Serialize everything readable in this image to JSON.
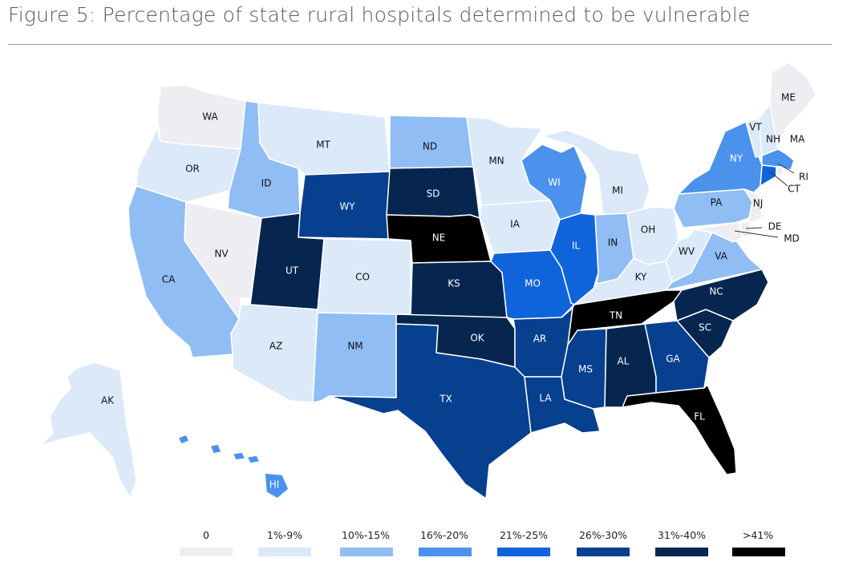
{
  "title": "Figure 5: Percentage of state rural hospitals determined to be vulnerable",
  "colors": {
    "0": "#eeeef2",
    "1": "#dbe9f8",
    "2": "#90bdf4",
    "3": "#4a92ec",
    "4": "#0f64dc",
    "5": "#06408f",
    "6": "#06264f",
    "7": "#000000"
  },
  "legend": [
    {
      "label": "0",
      "bin": 0
    },
    {
      "label": "1%-9%",
      "bin": 1
    },
    {
      "label": "10%-15%",
      "bin": 2
    },
    {
      "label": "16%-20%",
      "bin": 3
    },
    {
      "label": "21%-25%",
      "bin": 4
    },
    {
      "label": "26%-30%",
      "bin": 5
    },
    {
      "label": "31%-40%",
      "bin": 6
    },
    {
      "label": ">41%",
      "bin": 7
    }
  ],
  "states": {
    "WA": 0,
    "OR": 1,
    "CA": 2,
    "NV": 0,
    "ID": 2,
    "MT": 1,
    "WY": 5,
    "UT": 6,
    "AZ": 1,
    "CO": 1,
    "NM": 2,
    "ND": 2,
    "SD": 6,
    "NE": 7,
    "KS": 6,
    "OK": 6,
    "TX": 5,
    "MN": 1,
    "IA": 1,
    "MO": 4,
    "AR": 5,
    "LA": 5,
    "WI": 3,
    "IL": 4,
    "MI": 1,
    "IN": 2,
    "OH": 1,
    "KY": 1,
    "TN": 7,
    "MS": 5,
    "AL": 6,
    "GA": 5,
    "FL": 7,
    "SC": 6,
    "NC": 6,
    "VA": 2,
    "WV": 1,
    "PA": 2,
    "NY": 3,
    "VT": 1,
    "NH": 1,
    "ME": 0,
    "MA": 3,
    "RI": 0,
    "CT": 4,
    "NJ": 0,
    "DE": 0,
    "MD": 0,
    "AK": 1,
    "HI": 3
  },
  "labels": {
    "WA": "WA",
    "OR": "OR",
    "CA": "CA",
    "NV": "NV",
    "ID": "ID",
    "MT": "MT",
    "WY": "WY",
    "UT": "UT",
    "AZ": "AZ",
    "CO": "CO",
    "NM": "NM",
    "ND": "ND",
    "SD": "SD",
    "NE": "NE",
    "KS": "KS",
    "OK": "OK",
    "TX": "TX",
    "MN": "MN",
    "IA": "IA",
    "MO": "MO",
    "AR": "AR",
    "LA": "LA",
    "WI": "WI",
    "IL": "IL",
    "MI": "MI",
    "IN": "IN",
    "OH": "OH",
    "KY": "KY",
    "TN": "TN",
    "MS": "MS",
    "AL": "AL",
    "GA": "GA",
    "FL": "FL",
    "SC": "SC",
    "NC": "NC",
    "VA": "VA",
    "WV": "WV",
    "PA": "PA",
    "NY": "NY",
    "VT": "VT",
    "NH": "NH",
    "ME": "ME",
    "MA": "MA",
    "RI": "RI",
    "CT": "CT",
    "NJ": "NJ",
    "DE": "DE",
    "MD": "MD",
    "AK": "AK",
    "HI": "HI"
  }
}
